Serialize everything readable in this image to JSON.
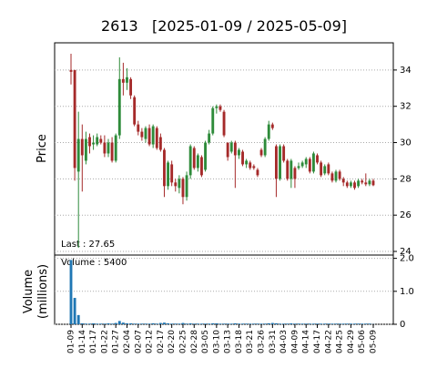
{
  "chart_data": {
    "type": "candlestick",
    "title": "2613   [2025-01-09 / 2025-05-09]",
    "ylabel": "Price",
    "volume_ylabel": [
      "Volume",
      "(millions)"
    ],
    "last_annotation": "Last : 27.65",
    "volume_annotation": "Volume : 5400",
    "categories": [
      "01-09",
      null,
      null,
      "01-14",
      null,
      null,
      "01-17",
      null,
      null,
      "01-22",
      null,
      null,
      "01-27",
      null,
      null,
      "02-04",
      null,
      null,
      "02-07",
      null,
      null,
      "02-12",
      null,
      null,
      "02-17",
      null,
      null,
      "02-20",
      null,
      null,
      "02-25",
      null,
      null,
      "02-28",
      null,
      null,
      "03-05",
      null,
      null,
      "03-10",
      null,
      null,
      "03-13",
      null,
      null,
      "03-18",
      null,
      null,
      "03-21",
      null,
      null,
      "03-26",
      null,
      null,
      "03-31",
      null,
      null,
      "04-03",
      null,
      null,
      "04-09",
      null,
      null,
      "04-14",
      null,
      null,
      "04-17",
      null,
      null,
      "04-22",
      null,
      null,
      "04-25",
      null,
      null,
      "04-29",
      null,
      null,
      "05-06",
      null,
      null,
      "05-09"
    ],
    "open": [
      34.0,
      34.0,
      28.4,
      30.2,
      29.0,
      30.3,
      29.9,
      29.9,
      30.2,
      30.0,
      29.4,
      30.0,
      29.0,
      30.4,
      33.5,
      33.3,
      33.5,
      32.5,
      31.0,
      30.6,
      30.2,
      30.8,
      29.9,
      30.8,
      30.3,
      29.6,
      27.6,
      28.8,
      27.8,
      27.5,
      28.0,
      27.0,
      28.2,
      29.7,
      28.6,
      29.2,
      28.5,
      30.0,
      30.5,
      31.9,
      32.0,
      31.7,
      30.0,
      29.5,
      30.0,
      29.3,
      29.5,
      28.8,
      28.9,
      28.7,
      28.5,
      29.6,
      29.3,
      30.2,
      31.0,
      29.8,
      28.0,
      29.8,
      29.0,
      28.0,
      28.6,
      28.6,
      28.7,
      28.8,
      29.1,
      28.4,
      29.3,
      28.9,
      28.3,
      28.8,
      28.3,
      27.9,
      28.4,
      28.0,
      27.8,
      27.6,
      27.8,
      27.6,
      27.9,
      27.8,
      27.7,
      27.9
    ],
    "high": [
      34.9,
      34.0,
      31.7,
      31.0,
      30.6,
      30.5,
      30.4,
      30.5,
      30.4,
      30.4,
      30.2,
      30.3,
      30.5,
      34.7,
      34.4,
      34.1,
      33.6,
      32.6,
      31.2,
      30.8,
      30.9,
      31.0,
      31.0,
      30.9,
      30.5,
      29.7,
      29.0,
      29.0,
      28.0,
      28.2,
      28.1,
      28.4,
      29.9,
      29.8,
      29.4,
      29.3,
      30.1,
      30.7,
      32.0,
      32.1,
      32.1,
      31.8,
      30.0,
      30.1,
      30.1,
      29.7,
      29.6,
      29.1,
      29.0,
      28.8,
      28.6,
      29.7,
      30.3,
      31.2,
      31.1,
      29.9,
      29.9,
      29.9,
      29.1,
      29.1,
      28.7,
      28.9,
      29.0,
      29.2,
      29.2,
      29.5,
      29.4,
      29.0,
      28.8,
      28.9,
      28.4,
      28.5,
      28.5,
      28.1,
      27.9,
      27.9,
      27.9,
      28.0,
      28.0,
      28.3,
      28.0,
      28.0
    ],
    "low": [
      33.2,
      27.9,
      24.2,
      27.3,
      28.8,
      29.4,
      29.6,
      29.8,
      29.9,
      29.2,
      29.2,
      28.9,
      28.9,
      30.2,
      32.6,
      32.9,
      32.4,
      30.9,
      30.4,
      30.1,
      30.0,
      29.8,
      29.7,
      29.6,
      29.5,
      27.0,
      27.4,
      27.6,
      27.3,
      27.2,
      26.6,
      26.8,
      28.0,
      28.5,
      28.4,
      28.1,
      28.4,
      29.9,
      30.4,
      31.6,
      31.7,
      30.3,
      29.0,
      29.4,
      27.5,
      29.1,
      28.7,
      28.6,
      28.5,
      28.5,
      28.1,
      29.2,
      29.2,
      30.1,
      30.7,
      27.0,
      27.9,
      28.9,
      27.9,
      27.5,
      27.5,
      28.5,
      28.6,
      28.6,
      28.3,
      28.3,
      28.8,
      28.1,
      28.2,
      28.2,
      27.8,
      27.8,
      27.9,
      27.6,
      27.5,
      27.5,
      27.4,
      27.5,
      27.7,
      27.6,
      27.6,
      27.6
    ],
    "close": [
      33.9,
      28.6,
      30.2,
      29.3,
      30.2,
      29.8,
      30.0,
      30.3,
      30.0,
      29.4,
      30.0,
      29.0,
      30.4,
      33.5,
      33.3,
      33.6,
      32.6,
      31.0,
      30.6,
      30.3,
      30.8,
      29.9,
      30.9,
      29.7,
      29.6,
      27.6,
      28.9,
      27.8,
      27.6,
      28.0,
      27.0,
      28.2,
      29.8,
      28.6,
      29.3,
      28.2,
      30.0,
      30.5,
      31.9,
      32.0,
      31.8,
      30.4,
      29.2,
      30.0,
      29.3,
      29.6,
      28.8,
      29.0,
      28.6,
      28.6,
      28.2,
      29.3,
      30.2,
      31.0,
      30.8,
      28.0,
      29.8,
      29.0,
      28.0,
      29.0,
      28.0,
      28.7,
      28.9,
      29.1,
      28.4,
      29.4,
      28.9,
      28.2,
      28.7,
      28.3,
      27.9,
      28.4,
      28.0,
      27.8,
      27.6,
      27.8,
      27.5,
      27.9,
      27.8,
      27.7,
      27.9,
      27.65
    ],
    "volume": [
      1.95,
      0.8,
      0.28,
      0.03,
      0.02,
      0.02,
      0.03,
      0.02,
      0.02,
      0.02,
      0.03,
      0.02,
      0.04,
      0.1,
      0.05,
      0.03,
      0.03,
      0.02,
      0.02,
      0.02,
      0.02,
      0.02,
      0.03,
      0.02,
      0.04,
      0.05,
      0.03,
      0.02,
      0.02,
      0.02,
      0.04,
      0.02,
      0.03,
      0.02,
      0.02,
      0.02,
      0.02,
      0.02,
      0.03,
      0.03,
      0.02,
      0.02,
      0.02,
      0.02,
      0.03,
      0.02,
      0.02,
      0.02,
      0.02,
      0.02,
      0.02,
      0.02,
      0.02,
      0.03,
      0.04,
      0.03,
      0.02,
      0.02,
      0.02,
      0.03,
      0.02,
      0.02,
      0.02,
      0.02,
      0.02,
      0.02,
      0.02,
      0.02,
      0.02,
      0.02,
      0.02,
      0.02,
      0.02,
      0.02,
      0.02,
      0.02,
      0.02,
      0.02,
      0.02,
      0.02,
      0.02,
      0.0054
    ],
    "up_color": "#2e8b3a",
    "down_color": "#a52a2a",
    "volume_color": "#1f77b4",
    "ylim": [
      23.8,
      35.5
    ],
    "yticks": [
      24,
      26,
      28,
      30,
      32,
      34
    ],
    "volume_ylim": [
      0,
      2.1
    ],
    "volume_yticks": [
      0,
      {
        "value": 1,
        "label": "1.0"
      },
      {
        "value": 2,
        "label": "2.0"
      }
    ],
    "grid": true
  }
}
